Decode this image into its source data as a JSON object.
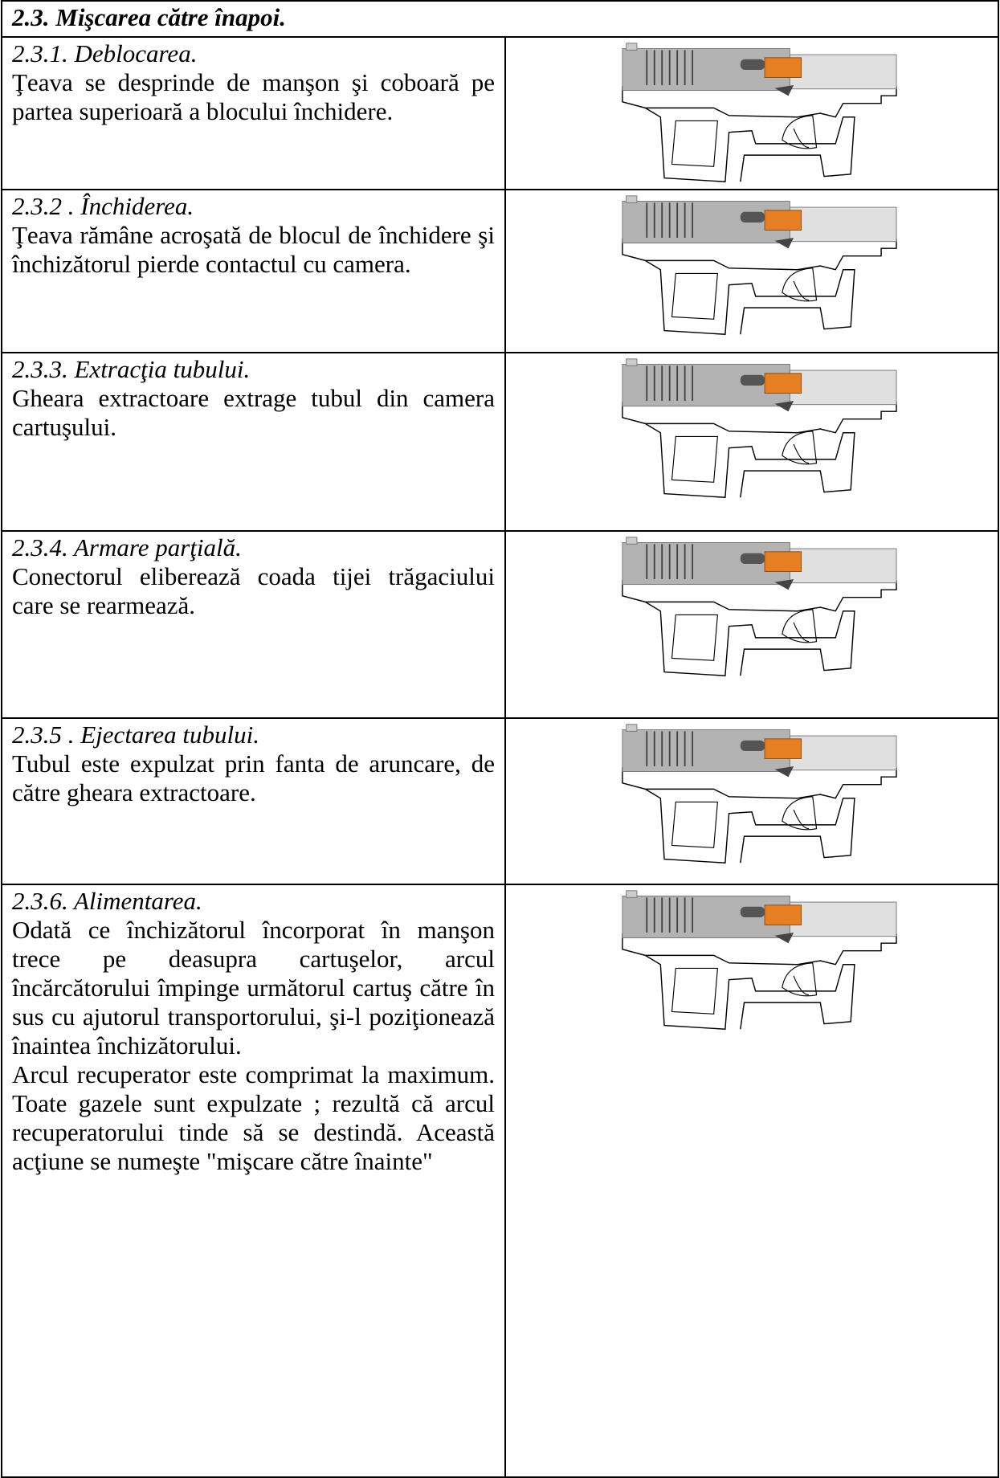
{
  "header": {
    "title": "2.3.   Mişcarea către înapoi."
  },
  "rows": [
    {
      "heading": "2.3.1. Deblocarea.",
      "paragraphs": [
        "Ţeava se desprinde de manşon şi coboară pe partea superioară a blocului închidere."
      ]
    },
    {
      "heading": "2.3.2 .  Închiderea.",
      "paragraphs": [
        " Ţeava rămâne acroşată de blocul de închidere şi închizătorul pierde contactul cu camera."
      ]
    },
    {
      "heading": "2.3.3.  Extracţia tubului.",
      "paragraphs": [
        "Gheara extractoare extrage tubul din camera cartuşului."
      ]
    },
    {
      "heading": "2.3.4.  Armare parţială.",
      "paragraphs": [
        "Conectorul eliberează coada tijei trăgaciului care se rearmează."
      ]
    },
    {
      "heading": "2.3.5 .  Ejectarea tubului.",
      "paragraphs": [
        "Tubul este expulzat prin fanta de aruncare, de către gheara extractoare."
      ]
    },
    {
      "heading": "2.3.6.  Alimentarea.",
      "paragraphs": [
        "Odată ce închizătorul încorporat în manşon trece pe deasupra cartuşelor, arcul încărcătorului împinge următorul cartuş către în sus cu ajutorul transportorului, şi-l poziţionează înaintea închizătorului.",
        " Arcul recuperator este comprimat la maximum. Toate gazele sunt expulzate ; rezultă că arcul recuperatorului tinde să se destindă. Această acţiune se numeşte \"mişcare către înainte\""
      ]
    }
  ]
}
